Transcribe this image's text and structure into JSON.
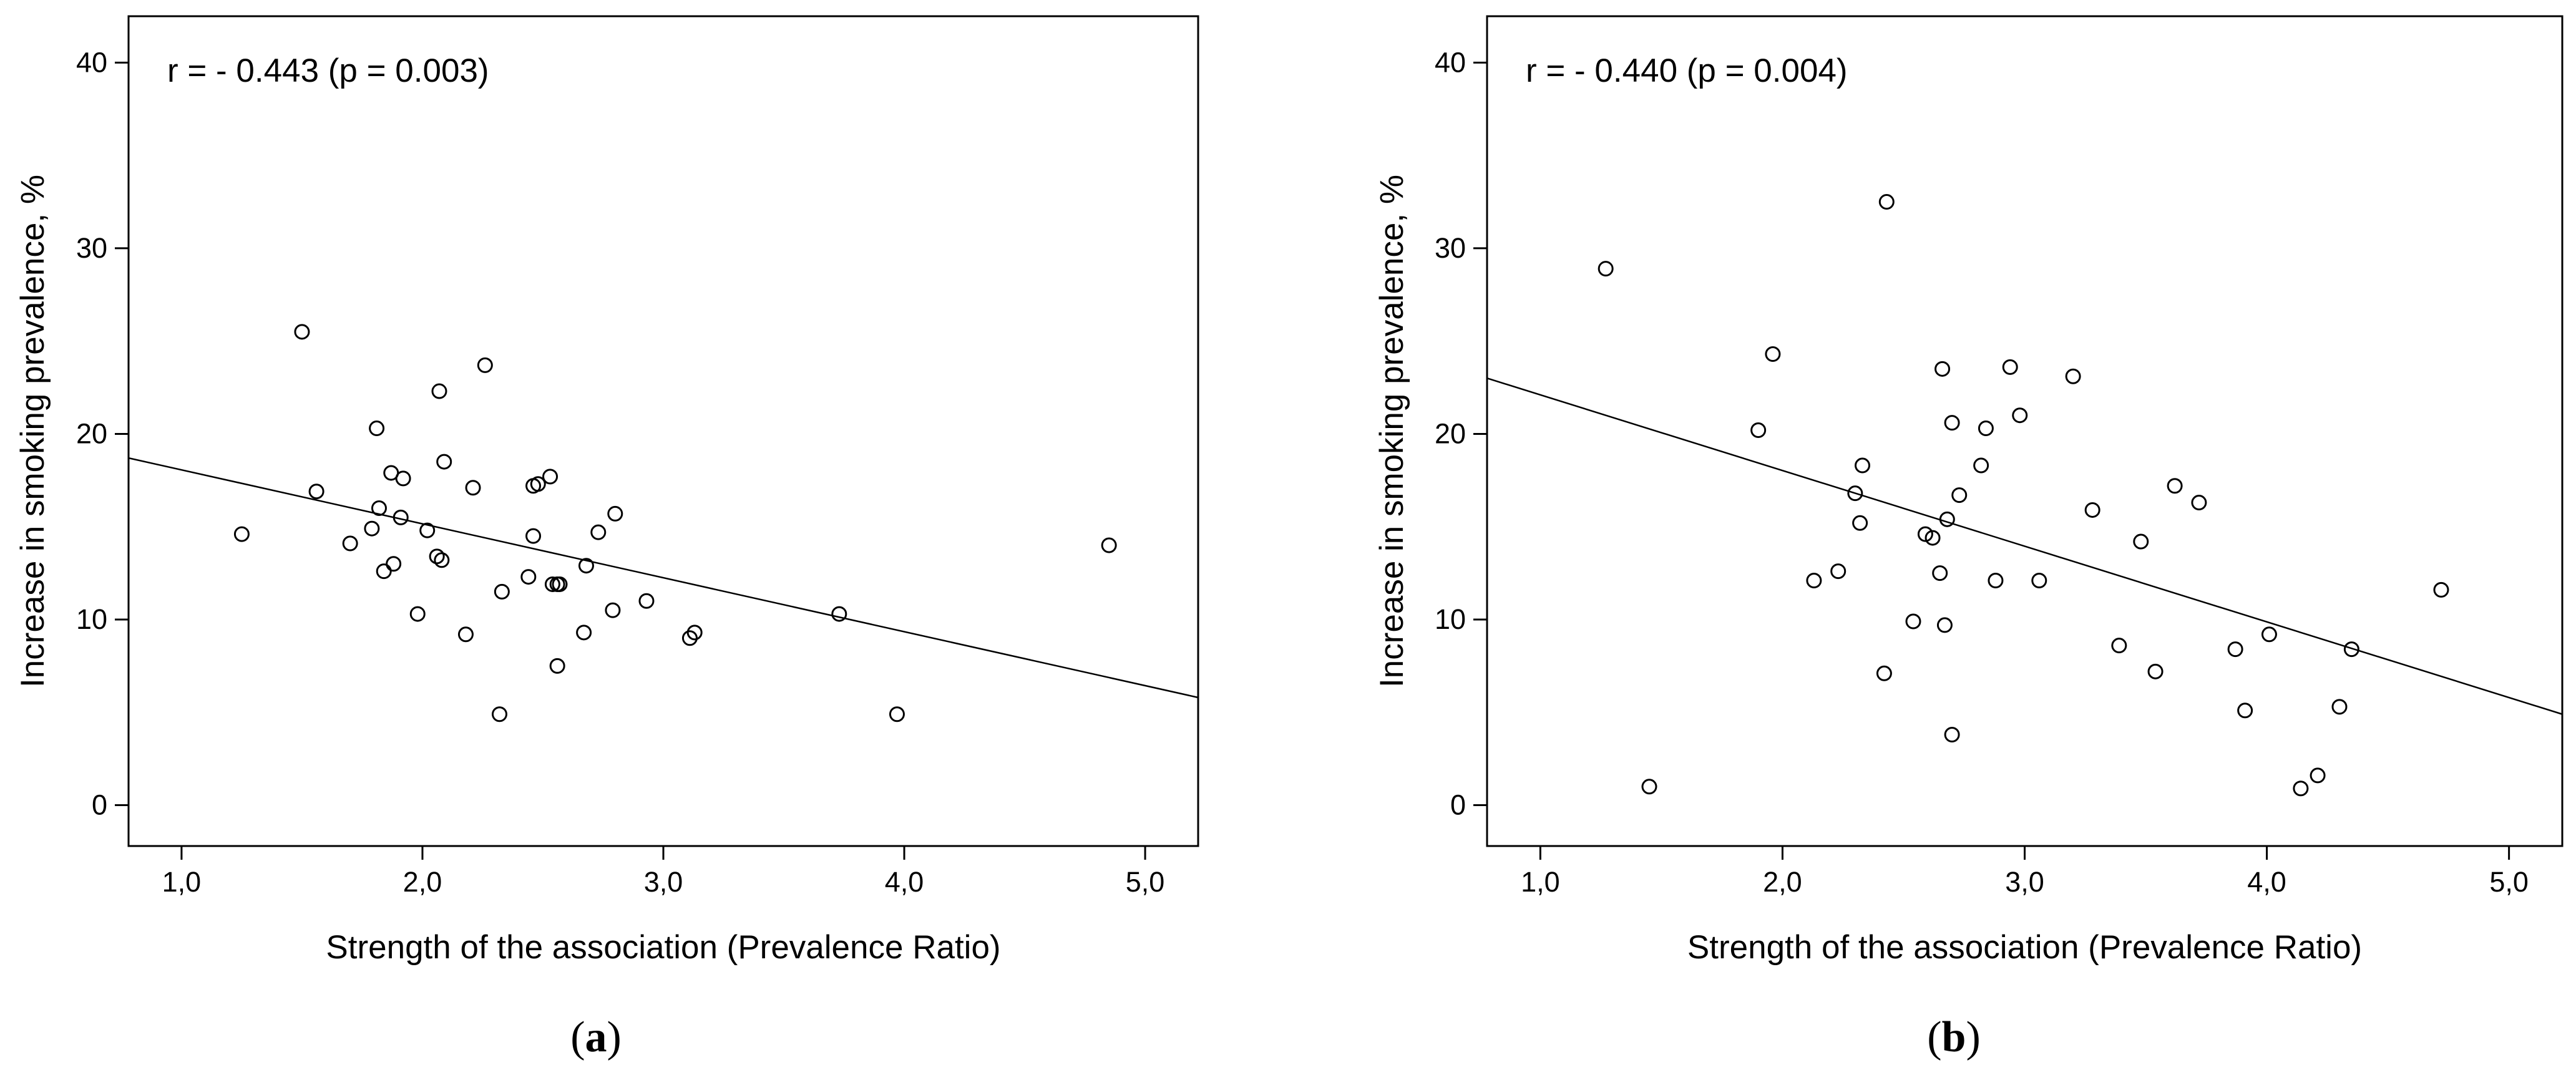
{
  "chart_data": [
    {
      "type": "scatter",
      "panel": "a",
      "caption_letter": "a",
      "annotation": "r = - 0.443  (p = 0.003)",
      "xlabel": "Strength of the association (Prevalence Ratio)",
      "ylabel": "Increase in smoking prevalence, %",
      "xlim": [
        0.78,
        5.22
      ],
      "ylim": [
        -2.2,
        42.5
      ],
      "xticks": [
        1.0,
        2.0,
        3.0,
        4.0,
        5.0
      ],
      "xtick_labels": [
        "1,0",
        "2,0",
        "3,0",
        "4,0",
        "5,0"
      ],
      "yticks": [
        0,
        10,
        20,
        30,
        40
      ],
      "ytick_labels": [
        "0",
        "10",
        "20",
        "30",
        "40"
      ],
      "fit_line": {
        "x": [
          0.78,
          5.22
        ],
        "y": [
          18.7,
          5.8
        ]
      },
      "points": {
        "x": [
          1.25,
          1.5,
          1.56,
          1.7,
          1.79,
          1.81,
          1.82,
          1.84,
          1.87,
          1.88,
          1.91,
          1.92,
          1.98,
          2.02,
          2.06,
          2.07,
          2.08,
          2.09,
          2.18,
          2.21,
          2.26,
          2.32,
          2.33,
          2.44,
          2.46,
          2.46,
          2.48,
          2.53,
          2.54,
          2.56,
          2.56,
          2.57,
          2.67,
          2.68,
          2.73,
          2.79,
          2.8,
          2.93,
          3.11,
          3.13,
          3.73,
          3.97,
          4.85
        ],
        "y": [
          14.6,
          25.5,
          16.9,
          14.1,
          14.9,
          20.3,
          16.0,
          12.6,
          17.9,
          13.0,
          15.5,
          17.6,
          10.3,
          14.8,
          13.4,
          22.3,
          13.2,
          18.5,
          9.2,
          17.1,
          23.7,
          4.9,
          11.5,
          12.3,
          17.2,
          14.5,
          17.3,
          17.7,
          11.9,
          11.9,
          7.5,
          11.9,
          9.3,
          12.9,
          14.7,
          10.5,
          15.7,
          11.0,
          9.0,
          9.3,
          10.3,
          4.9,
          14.0
        ]
      }
    },
    {
      "type": "scatter",
      "panel": "b",
      "caption_letter": "b",
      "annotation": "r = - 0.440 (p = 0.004)",
      "xlabel": "Strength of the association (Prevalence Ratio)",
      "ylabel": "Increase in smoking prevalence, %",
      "xlim": [
        0.78,
        5.22
      ],
      "ylim": [
        -2.2,
        42.5
      ],
      "xticks": [
        1.0,
        2.0,
        3.0,
        4.0,
        5.0
      ],
      "xtick_labels": [
        "1,0",
        "2,0",
        "3,0",
        "4,0",
        "5,0"
      ],
      "yticks": [
        0,
        10,
        20,
        30,
        40
      ],
      "ytick_labels": [
        "0",
        "10",
        "20",
        "30",
        "40"
      ],
      "fit_line": {
        "x": [
          0.78,
          5.22
        ],
        "y": [
          23.0,
          4.9
        ]
      },
      "points": {
        "x": [
          1.27,
          1.45,
          1.9,
          1.96,
          2.13,
          2.23,
          2.3,
          2.32,
          2.33,
          2.42,
          2.43,
          2.54,
          2.59,
          2.62,
          2.65,
          2.66,
          2.67,
          2.68,
          2.7,
          2.7,
          2.73,
          2.82,
          2.84,
          2.88,
          2.94,
          2.98,
          3.06,
          3.2,
          3.28,
          3.39,
          3.48,
          3.54,
          3.62,
          3.72,
          3.87,
          3.91,
          4.01,
          4.14,
          4.21,
          4.3,
          4.35,
          4.72
        ],
        "y": [
          28.9,
          1.0,
          20.2,
          24.3,
          12.1,
          12.6,
          16.8,
          15.2,
          18.3,
          7.1,
          32.5,
          9.9,
          14.6,
          14.4,
          12.5,
          23.5,
          9.7,
          15.4,
          20.6,
          3.8,
          16.7,
          18.3,
          20.3,
          12.1,
          23.6,
          21.0,
          12.1,
          23.1,
          15.9,
          8.6,
          14.2,
          7.2,
          17.2,
          16.3,
          8.4,
          5.1,
          9.2,
          0.9,
          1.6,
          5.3,
          8.4,
          11.6
        ]
      }
    }
  ]
}
